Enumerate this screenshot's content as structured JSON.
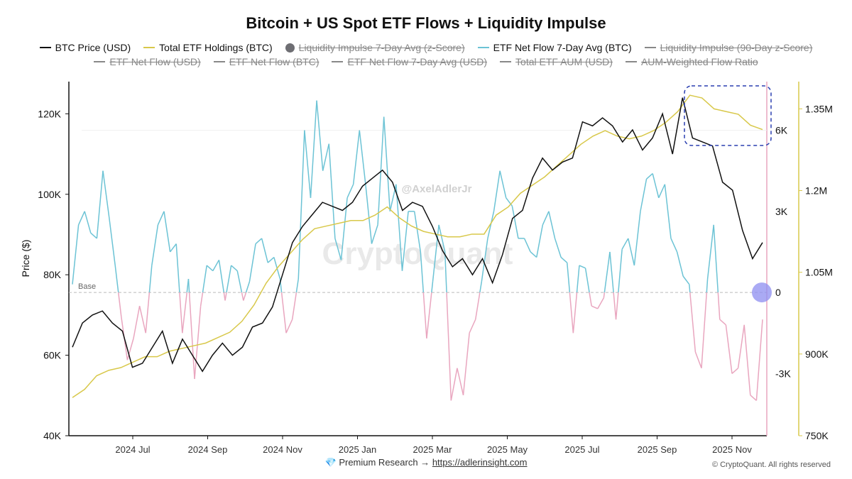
{
  "chart_data": {
    "type": "line",
    "title": "Bitcoin + US Spot ETF Flows + Liquidity Impulse",
    "ylabel": "Price ($)",
    "watermark": "CryptoQuant",
    "handle": "@AxelAdlerJr",
    "base_label": "Base",
    "x_ticks": [
      "2024 Jul",
      "2024 Sep",
      "2024 Nov",
      "2025 Jan",
      "2025 Mar",
      "2025 May",
      "2025 Jul",
      "2025 Sep",
      "2025 Nov"
    ],
    "left_axis": {
      "ticks": [
        40000,
        60000,
        80000,
        100000,
        120000
      ],
      "labels": [
        "40K",
        "60K",
        "80K",
        "100K",
        "120K"
      ],
      "ylim": [
        40000,
        128000
      ]
    },
    "mid_axis": {
      "ticks": [
        -3000,
        0,
        3000,
        6000
      ],
      "labels": [
        "-3K",
        "0",
        "3K",
        "6K"
      ],
      "ylim": [
        -5300,
        7800
      ]
    },
    "right_axis": {
      "ticks": [
        750000,
        900000,
        1050000,
        1200000,
        1350000
      ],
      "labels": [
        "750K",
        "900K",
        "1.05M",
        "1.2M",
        "1.35M"
      ],
      "ylim": [
        750000,
        1400000
      ]
    },
    "legend": [
      {
        "label": "BTC Price (USD)",
        "color": "#111111",
        "marker": "line",
        "active": true,
        "row": 1
      },
      {
        "label": "Total ETF Holdings (BTC)",
        "color": "#d8c84a",
        "marker": "line",
        "active": true,
        "row": 1
      },
      {
        "label": "Liquidity Impulse 7-Day Avg (z-Score)",
        "color": "#6e6e73",
        "marker": "dot",
        "active": false,
        "row": 1
      },
      {
        "label": "ETF Net Flow 7-Day Avg (BTC)",
        "color": "#6cc3d5",
        "marker": "line",
        "active": true,
        "row": 1
      },
      {
        "label": "Liquidity Impulse (90-Day z-Score)",
        "color": "#888888",
        "marker": "line",
        "active": false,
        "row": 1
      },
      {
        "label": "ETF Net Flow (USD)",
        "color": "#888888",
        "marker": "line",
        "active": false,
        "row": 2
      },
      {
        "label": "ETF Net Flow (BTC)",
        "color": "#888888",
        "marker": "line",
        "active": false,
        "row": 2
      },
      {
        "label": "ETF Net Flow 7-Day Avg (USD)",
        "color": "#888888",
        "marker": "line",
        "active": false,
        "row": 2
      },
      {
        "label": "Total ETF AUM (USD)",
        "color": "#888888",
        "marker": "line",
        "active": false,
        "row": 2
      },
      {
        "label": "AUM-Weighted Flow Ratio",
        "color": "#888888",
        "marker": "line",
        "active": false,
        "row": 2
      }
    ],
    "series": [
      {
        "name": "BTC Price (USD)",
        "axis": "left",
        "color": "#111111",
        "values": [
          62000,
          68000,
          70000,
          71000,
          68000,
          66000,
          57000,
          58000,
          62000,
          66000,
          58000,
          64000,
          60000,
          56000,
          60000,
          63000,
          60000,
          62000,
          67000,
          68000,
          72000,
          80000,
          88000,
          92000,
          95000,
          98000,
          97000,
          96000,
          98000,
          102000,
          104000,
          106000,
          103000,
          96000,
          98000,
          97000,
          92000,
          86000,
          82000,
          84000,
          80000,
          84000,
          78000,
          85000,
          94000,
          96000,
          104000,
          109000,
          106000,
          108000,
          109000,
          118000,
          117000,
          119000,
          117000,
          113000,
          116000,
          111000,
          114000,
          120000,
          110000,
          124000,
          114000,
          113000,
          112000,
          103000,
          101000,
          91000,
          84000,
          88000
        ]
      },
      {
        "name": "Total ETF Holdings (BTC)",
        "axis": "right",
        "color": "#d8c84a",
        "values": [
          820000,
          835000,
          860000,
          870000,
          875000,
          885000,
          895000,
          895000,
          905000,
          910000,
          915000,
          920000,
          930000,
          940000,
          960000,
          990000,
          1030000,
          1060000,
          1085000,
          1110000,
          1130000,
          1135000,
          1140000,
          1145000,
          1145000,
          1155000,
          1170000,
          1150000,
          1135000,
          1125000,
          1120000,
          1115000,
          1115000,
          1120000,
          1120000,
          1155000,
          1170000,
          1195000,
          1210000,
          1225000,
          1245000,
          1265000,
          1285000,
          1300000,
          1310000,
          1300000,
          1295000,
          1300000,
          1310000,
          1325000,
          1345000,
          1375000,
          1370000,
          1350000,
          1345000,
          1340000,
          1320000,
          1312000
        ]
      },
      {
        "name": "ETF Net Flow 7-Day Avg (BTC)",
        "axis": "mid",
        "color": "#6cc3d5",
        "neg_color": "#e9a6bf",
        "values": [
          300,
          2500,
          3000,
          2200,
          2000,
          4500,
          2800,
          1000,
          -900,
          -2500,
          -1700,
          -500,
          -1500,
          1000,
          2500,
          3000,
          1500,
          1800,
          -1500,
          500,
          -3200,
          -500,
          1000,
          800,
          1200,
          -300,
          1000,
          800,
          -300,
          400,
          1800,
          2000,
          1100,
          1300,
          500,
          -1500,
          -1000,
          500,
          6000,
          3500,
          7100,
          4500,
          5500,
          2000,
          1200,
          3500,
          4000,
          6000,
          4000,
          1800,
          2500,
          6500,
          3000,
          4000,
          800,
          3000,
          3000,
          1500,
          -1700,
          400,
          2500,
          1500,
          -4000,
          -2800,
          -3800,
          -1500,
          -1000,
          400,
          2000,
          3000,
          4500,
          3500,
          3200,
          2000,
          2000,
          1500,
          1300,
          2500,
          3000,
          2000,
          1300,
          1100,
          -1500,
          1000,
          900,
          -500,
          -600,
          -200,
          1500,
          -1000,
          1600,
          2000,
          1000,
          3000,
          4200,
          4400,
          3500,
          4000,
          2000,
          1500,
          600,
          300,
          -2200,
          -2800,
          500,
          2500,
          -1000,
          -1200,
          -3000,
          -2800,
          -1200,
          -3800,
          -4000,
          -1000
        ]
      }
    ]
  },
  "footer": {
    "text": "Premium Research →",
    "link": "https://adlerinsight.com",
    "copyright": "© CryptoQuant. All rights reserved",
    "gem_icon": "💎"
  }
}
